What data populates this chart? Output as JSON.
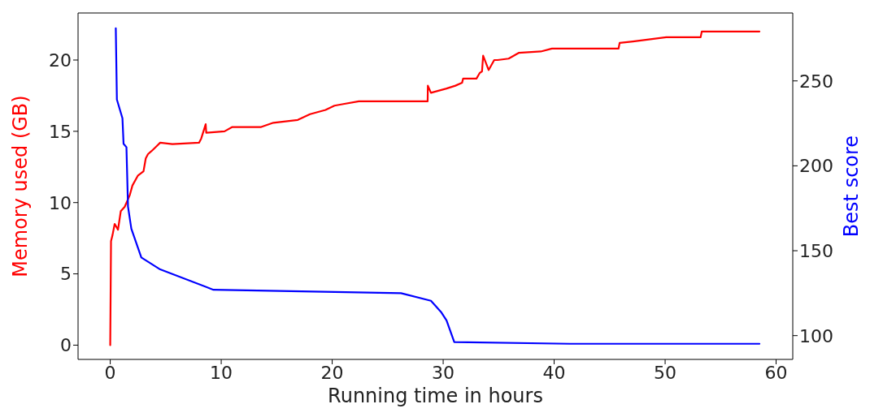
{
  "chart_data": {
    "type": "line",
    "xlabel": "Running time in hours",
    "ylabel": "Memory used (GB)",
    "y2label": "Best score",
    "xlim": [
      -2.9,
      61.5
    ],
    "xticks": [
      0,
      10,
      20,
      30,
      40,
      50,
      60
    ],
    "ylim": [
      -1,
      23.3
    ],
    "yticks": [
      0,
      5,
      10,
      15,
      20
    ],
    "y2lim": [
      86,
      290
    ],
    "y2ticks": [
      100,
      150,
      200,
      250
    ],
    "marker": "none",
    "line_style": "solid",
    "series": [
      {
        "color": "#ff0000",
        "axis": "y",
        "x": [
          0,
          0.07,
          0.2,
          0.4,
          0.7,
          0.95,
          1.3,
          1.75,
          2.0,
          2.5,
          3.0,
          3.2,
          3.4,
          3.7,
          4.1,
          4.5,
          5.6,
          8.0,
          8.2,
          8.6,
          8.65,
          10.3,
          11.0,
          13.6,
          14.7,
          16.9,
          18.0,
          19.4,
          20.2,
          20.9,
          22.4,
          28.6,
          28.62,
          28.9,
          30.3,
          31.1,
          31.7,
          31.8,
          33.0,
          33.3,
          33.5,
          33.6,
          34.1,
          34.6,
          34.9,
          35.9,
          36.8,
          38.8,
          39.8,
          45.8,
          45.9,
          47.1,
          50.1,
          53.2,
          53.3,
          56.0,
          58.5
        ],
        "values": [
          0,
          7.3,
          7.7,
          8.5,
          8.1,
          9.4,
          9.7,
          10.5,
          11.2,
          11.9,
          12.2,
          13.1,
          13.4,
          13.6,
          13.9,
          14.2,
          14.1,
          14.2,
          14.5,
          15.5,
          14.9,
          15.0,
          15.3,
          15.3,
          15.6,
          15.8,
          16.2,
          16.5,
          16.8,
          16.9,
          17.1,
          17.1,
          18.2,
          17.7,
          18.0,
          18.2,
          18.4,
          18.7,
          18.7,
          19.1,
          19.2,
          20.3,
          19.3,
          20.0,
          20.0,
          20.1,
          20.5,
          20.6,
          20.8,
          20.8,
          21.2,
          21.3,
          21.6,
          21.6,
          22.0,
          22.0,
          22.0
        ]
      },
      {
        "color": "#0000ff",
        "axis": "y2",
        "x": [
          0.5,
          0.6,
          1.1,
          1.2,
          1.46,
          1.6,
          1.9,
          2.8,
          4.5,
          9.3,
          26.2,
          28.9,
          29.8,
          30.3,
          31.0,
          41.4,
          58.5
        ],
        "values": [
          281,
          239,
          228,
          213,
          211,
          176,
          163,
          146,
          139,
          127,
          125,
          120.5,
          114,
          109,
          96.2,
          95.2,
          95.2
        ]
      }
    ]
  }
}
